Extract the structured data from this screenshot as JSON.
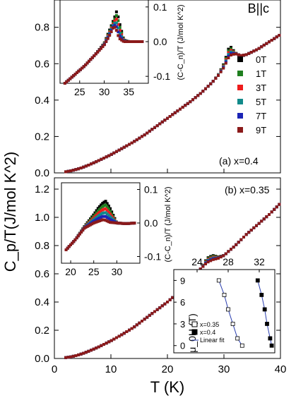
{
  "figure": {
    "ylabel": "C_p/T(J/mol K^2)",
    "xlabel": "T (K)"
  },
  "chart_data": [
    {
      "type": "scatter",
      "panel_label": "(a) x=0.4",
      "corner_label": "B||c",
      "xlim": [
        0,
        40
      ],
      "ylim": [
        0,
        0.95
      ],
      "xticks": [
        0,
        10,
        20,
        30,
        40
      ],
      "yticks": [
        0.0,
        0.2,
        0.4,
        0.6,
        0.8
      ],
      "legend": [
        {
          "name": "0T",
          "color": "#000000"
        },
        {
          "name": "1T",
          "color": "#1f7f1f"
        },
        {
          "name": "3T",
          "color": "#ee1c1c"
        },
        {
          "name": "5T",
          "color": "#118a8a"
        },
        {
          "name": "7T",
          "color": "#1b24b5"
        },
        {
          "name": "9T",
          "color": "#8b1a1a"
        }
      ],
      "legend_position": "right",
      "x": [
        2,
        3,
        4,
        5,
        6,
        8,
        10,
        12,
        14,
        16,
        18,
        20,
        22,
        24,
        26,
        28,
        29,
        30,
        31,
        32,
        33,
        34,
        36,
        38,
        40
      ],
      "series": [
        {
          "name": "0T",
          "values": [
            0.006,
            0.012,
            0.02,
            0.03,
            0.042,
            0.07,
            0.1,
            0.135,
            0.17,
            0.21,
            0.255,
            0.3,
            0.345,
            0.39,
            0.44,
            0.5,
            0.54,
            0.6,
            0.7,
            0.66,
            0.64,
            0.65,
            0.68,
            0.72,
            0.76
          ]
        },
        {
          "name": "9T",
          "values": [
            0.006,
            0.012,
            0.02,
            0.03,
            0.042,
            0.07,
            0.1,
            0.135,
            0.17,
            0.21,
            0.255,
            0.3,
            0.345,
            0.39,
            0.44,
            0.5,
            0.535,
            0.58,
            0.645,
            0.655,
            0.645,
            0.65,
            0.68,
            0.72,
            0.76
          ]
        }
      ],
      "inset": {
        "ylabel": "(C-C_n)/T (J/mol K^2)",
        "xlim": [
          21,
          39
        ],
        "ylim": [
          -0.12,
          0.12
        ],
        "xticks": [
          25,
          30,
          35
        ],
        "yticks": [
          0.1,
          0.0,
          -0.1
        ],
        "x": [
          22,
          24,
          26,
          28,
          30,
          31,
          32,
          32.6,
          33,
          34,
          35,
          36,
          38
        ],
        "series": [
          {
            "name": "0T",
            "values": [
              -0.12,
              -0.095,
              -0.07,
              -0.04,
              -0.005,
              0.03,
              0.065,
              0.09,
              0.06,
              0.005,
              0.0,
              0.0,
              0.0
            ]
          },
          {
            "name": "9T",
            "values": [
              -0.12,
              -0.095,
              -0.07,
              -0.04,
              -0.01,
              0.015,
              0.045,
              0.03,
              0.01,
              0.0,
              0.0,
              0.0,
              0.0
            ]
          }
        ]
      }
    },
    {
      "type": "scatter",
      "panel_label": "(b) x=0.35",
      "xlim": [
        0,
        40
      ],
      "ylim": [
        0,
        1.28
      ],
      "xticks": [
        0,
        10,
        20,
        30,
        40
      ],
      "yticks": [
        0.0,
        0.2,
        0.4,
        0.6,
        0.8,
        1.0,
        1.2
      ],
      "xlabel": "T (K)",
      "x": [
        2,
        3,
        4,
        5,
        6,
        8,
        10,
        12,
        14,
        16,
        18,
        20,
        22,
        24,
        25,
        26,
        27,
        28,
        29,
        30,
        32,
        34,
        36,
        38,
        40
      ],
      "series": [
        {
          "name": "0T",
          "values": [
            0.006,
            0.012,
            0.022,
            0.035,
            0.05,
            0.085,
            0.125,
            0.17,
            0.22,
            0.28,
            0.34,
            0.4,
            0.47,
            0.55,
            0.6,
            0.64,
            0.71,
            0.73,
            0.72,
            0.73,
            0.8,
            0.88,
            0.95,
            1.02,
            1.1
          ]
        },
        {
          "name": "9T",
          "values": [
            0.006,
            0.012,
            0.022,
            0.035,
            0.05,
            0.085,
            0.125,
            0.17,
            0.22,
            0.28,
            0.34,
            0.4,
            0.47,
            0.55,
            0.6,
            0.64,
            0.68,
            0.7,
            0.71,
            0.73,
            0.8,
            0.88,
            0.95,
            1.02,
            1.1
          ]
        }
      ],
      "inset": {
        "ylabel": "(C-C_n)/T (J/mol K^2)",
        "xlim": [
          18,
          35
        ],
        "ylim": [
          -0.12,
          0.12
        ],
        "xticks": [
          20,
          25,
          30
        ],
        "yticks": [
          0.1,
          0.0,
          -0.1
        ],
        "x": [
          19,
          21,
          23,
          25,
          26,
          27,
          27.6,
          28.5,
          30,
          32,
          34
        ],
        "series": [
          {
            "name": "0T",
            "values": [
              -0.08,
              -0.05,
              -0.01,
              0.025,
              0.045,
              0.06,
              0.065,
              0.045,
              0.0,
              -0.002,
              0.0
            ]
          },
          {
            "name": "9T",
            "values": [
              -0.08,
              -0.05,
              -0.015,
              0.0,
              0.005,
              0.01,
              0.008,
              0.002,
              0.0,
              -0.002,
              0.0
            ]
          }
        ]
      },
      "inset2": {
        "ylabel": "μ_0H (T)",
        "xlim": [
          21,
          34
        ],
        "ylim": [
          -1,
          10.5
        ],
        "xticks": [
          24,
          28,
          32
        ],
        "yticks": [
          0,
          3,
          6,
          9
        ],
        "legend": [
          "x=0.35",
          "x=0.4",
          "Linear fit"
        ],
        "series": [
          {
            "name": "x=0.35",
            "x": [
              26.8,
              27.5,
              28.0,
              28.6,
              29.2,
              29.8
            ],
            "y": [
              9,
              7,
              5,
              3,
              1,
              0
            ]
          },
          {
            "name": "x=0.4",
            "x": [
              31.8,
              32.3,
              32.7,
              33.0,
              33.4,
              33.6
            ],
            "y": [
              9,
              7,
              5,
              3,
              1,
              0
            ]
          }
        ]
      }
    }
  ]
}
